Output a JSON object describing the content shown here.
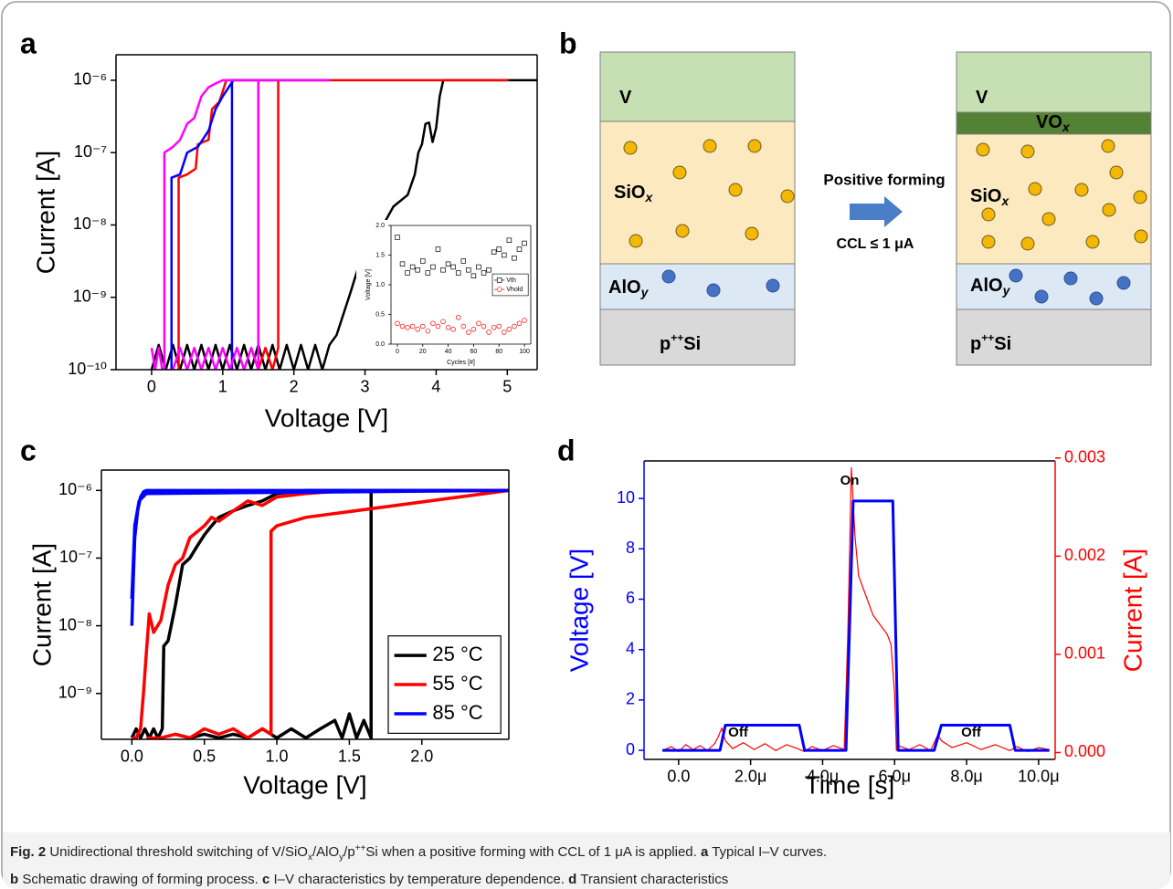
{
  "panel_labels": [
    "a",
    "b",
    "c",
    "d"
  ],
  "chart_data": [
    {
      "type": "line",
      "log_y": true,
      "xlabel": "Voltage [V]",
      "ylabel": "Current [A]",
      "xlim": [
        -0.5,
        5.42
      ],
      "xticks": [
        0,
        1,
        2,
        3,
        4,
        5
      ],
      "ylim": [
        1e-10,
        2.25e-06
      ],
      "yticks": [
        {
          "value": 1e-10,
          "label": "10⁻¹⁰"
        },
        {
          "value": 1e-09,
          "label": "10⁻⁹"
        },
        {
          "value": 1e-08,
          "label": "10⁻⁸"
        },
        {
          "value": 1e-07,
          "label": "10⁻⁷"
        },
        {
          "value": 1e-06,
          "label": "10⁻⁶"
        }
      ],
      "series": [
        {
          "color": "#000000",
          "x": [
            0,
            0.1,
            0.2,
            0.3,
            0.4,
            0.5,
            0.6,
            0.7,
            0.8,
            0.9,
            1.0,
            1.1,
            1.2,
            1.3,
            1.4,
            1.5,
            1.6,
            1.7,
            1.8,
            1.9,
            2.0,
            2.1,
            2.2,
            2.3,
            2.4,
            2.5,
            2.6,
            2.7,
            2.8,
            2.9,
            3.0,
            3.2,
            3.4,
            3.6,
            3.7,
            3.75,
            3.8,
            3.85,
            3.9,
            3.95,
            4.0,
            4.05,
            4.1,
            5.42
          ],
          "values": [
            1e-10,
            2.2e-10,
            1e-10,
            2.2e-10,
            1e-10,
            2.2e-10,
            1e-10,
            2.2e-10,
            1e-10,
            2.2e-10,
            1e-10,
            2.2e-10,
            1e-10,
            2.2e-10,
            1e-10,
            2.2e-10,
            1e-10,
            2.2e-10,
            1e-10,
            2.2e-10,
            1e-10,
            2.2e-10,
            1e-10,
            2.2e-10,
            1e-10,
            2.2e-10,
            3e-10,
            6e-10,
            1.2e-09,
            2.5e-09,
            4e-09,
            8e-09,
            1.8e-08,
            2.6e-08,
            5e-08,
            1e-07,
            1.3e-07,
            2.5e-07,
            2.6e-07,
            1.4e-07,
            2.2e-07,
            6e-07,
            1e-06,
            1e-06
          ]
        },
        {
          "color": "#ff0000",
          "x": [
            0.38,
            0.38,
            0.5,
            0.62,
            0.65,
            0.8,
            0.85,
            0.95,
            1.0,
            1.05,
            5.0,
            1.78,
            1.78,
            1.7,
            1.6,
            1.5,
            1.4
          ],
          "values": [
            1e-10,
            4.5e-08,
            5e-08,
            6e-08,
            1.3e-07,
            1.5e-07,
            4e-07,
            5e-07,
            7e-07,
            1e-06,
            1e-06,
            1e-06,
            2e-10,
            1e-10,
            2e-10,
            1e-10,
            2e-10
          ]
        },
        {
          "color": "#0000ff",
          "x": [
            0.28,
            0.28,
            0.4,
            0.5,
            0.65,
            0.8,
            0.9,
            1.0,
            1.15,
            2.5,
            1.13,
            1.13
          ],
          "values": [
            1e-10,
            4.5e-08,
            5e-08,
            1e-07,
            1.2e-07,
            2e-07,
            4e-07,
            6e-07,
            1e-06,
            1e-06,
            1e-06,
            1e-10
          ]
        },
        {
          "color": "#ff00ff",
          "x": [
            0,
            0.05,
            0.1,
            0.15,
            0.18,
            0.18,
            0.3,
            0.4,
            0.5,
            0.6,
            0.7,
            0.8,
            0.9,
            1.0,
            2.5,
            1.5,
            1.5,
            1.4,
            1.3,
            1.2,
            1.1,
            1.0,
            0.9,
            0.8,
            0.7,
            0.6,
            0.5,
            0.4,
            0.3
          ],
          "values": [
            2e-10,
            1e-10,
            2e-10,
            1e-10,
            1e-10,
            1e-07,
            1.2e-07,
            1.5e-07,
            2.5e-07,
            3e-07,
            6e-07,
            8e-07,
            9e-07,
            1e-06,
            1e-06,
            1e-06,
            1e-10,
            2e-10,
            1e-10,
            2e-10,
            1e-10,
            2e-10,
            1e-10,
            2e-10,
            1e-10,
            2e-10,
            1e-10,
            2e-10,
            1e-10
          ]
        }
      ]
    },
    {
      "type": "scatter",
      "xlabel": "Cycles [#]",
      "ylabel": "Voltage [V]",
      "legend": "center right",
      "xlim": [
        -5,
        105
      ],
      "xticks": [
        0,
        20,
        40,
        60,
        80,
        100
      ],
      "ylim": [
        0,
        2
      ],
      "yticks": [
        {
          "value": 0,
          "label": "0.0"
        },
        {
          "value": 0.5,
          "label": "0.5"
        },
        {
          "value": 1,
          "label": "1.0"
        },
        {
          "value": 1.5,
          "label": "1.5"
        },
        {
          "value": 2,
          "label": "2.0"
        }
      ],
      "series": [
        {
          "name": "Vth",
          "color": "#000000",
          "marker": "square",
          "x": [
            0,
            4,
            8,
            12,
            16,
            20,
            24,
            28,
            32,
            36,
            40,
            44,
            48,
            52,
            56,
            60,
            64,
            68,
            72,
            76,
            80,
            84,
            88,
            92,
            96,
            100
          ],
          "values": [
            1.8,
            1.35,
            1.2,
            1.3,
            1.25,
            1.4,
            1.2,
            1.3,
            1.6,
            1.25,
            1.35,
            1.3,
            1.2,
            1.4,
            1.25,
            1.15,
            1.3,
            1.2,
            1.25,
            1.55,
            1.6,
            1.5,
            1.75,
            1.45,
            1.6,
            1.7
          ]
        },
        {
          "name": "Vhold",
          "color": "#ff0000",
          "marker": "circle",
          "x": [
            0,
            4,
            8,
            12,
            16,
            20,
            24,
            28,
            32,
            36,
            40,
            44,
            48,
            52,
            56,
            60,
            64,
            68,
            72,
            76,
            80,
            84,
            88,
            92,
            96,
            100
          ],
          "values": [
            0.35,
            0.3,
            0.28,
            0.3,
            0.25,
            0.3,
            0.22,
            0.35,
            0.3,
            0.38,
            0.28,
            0.25,
            0.45,
            0.3,
            0.2,
            0.25,
            0.35,
            0.3,
            0.2,
            0.28,
            0.3,
            0.2,
            0.25,
            0.3,
            0.35,
            0.4
          ]
        }
      ]
    },
    {
      "type": "line",
      "log_y": true,
      "xlabel": "Voltage [V]",
      "ylabel": "Current [A]",
      "legend": "lower right",
      "xlim": [
        -0.21,
        2.6
      ],
      "xticks": [
        {
          "value": 0,
          "label": "0.0"
        },
        {
          "value": 0.5,
          "label": "0.5"
        },
        {
          "value": 1,
          "label": "1.0"
        },
        {
          "value": 1.5,
          "label": "1.5"
        },
        {
          "value": 2,
          "label": "2.0"
        }
      ],
      "ylim": [
        2.1e-10,
        2e-06
      ],
      "yticks": [
        {
          "value": 1e-09,
          "label": "10⁻⁹"
        },
        {
          "value": 1e-08,
          "label": "10⁻⁸"
        },
        {
          "value": 1e-07,
          "label": "10⁻⁷"
        },
        {
          "value": 1e-06,
          "label": "10⁻⁶"
        }
      ],
      "series": [
        {
          "name": "25 °C",
          "color": "#000000",
          "x": [
            0,
            0.03,
            0.06,
            0.09,
            0.12,
            0.15,
            0.18,
            0.21,
            0.22,
            0.25,
            0.3,
            0.35,
            0.4,
            0.45,
            0.5,
            0.55,
            0.6,
            0.7,
            0.8,
            0.9,
            1.0,
            1.2,
            1.5,
            2.6,
            1.65,
            1.65,
            1.6,
            1.55,
            1.5,
            1.45,
            1.4,
            1.3,
            1.2,
            1.1,
            1.0,
            0.9,
            0.8,
            0.7,
            0.6,
            0.5,
            0.4,
            0.3
          ],
          "values": [
            2.2e-10,
            3e-10,
            2.2e-10,
            3e-10,
            2.2e-10,
            3e-10,
            2.2e-10,
            3e-10,
            5e-09,
            6e-09,
            2e-08,
            8e-08,
            1e-07,
            1.5e-07,
            2.2e-07,
            3e-07,
            4e-07,
            5e-07,
            6e-07,
            7e-07,
            9e-07,
            1e-06,
            1e-06,
            1e-06,
            1e-06,
            2.2e-10,
            4e-10,
            2.2e-10,
            5e-10,
            2.2e-10,
            4e-10,
            3e-10,
            2.2e-10,
            3e-10,
            2.2e-10,
            3e-10,
            2.2e-10,
            2.5e-10,
            2.2e-10,
            2.5e-10,
            2.2e-10,
            2.5e-10
          ]
        },
        {
          "name": "55 °C",
          "color": "#ff0000",
          "x": [
            0,
            0.03,
            0.06,
            0.08,
            0.1,
            0.12,
            0.15,
            0.2,
            0.25,
            0.3,
            0.35,
            0.4,
            0.5,
            0.55,
            0.6,
            0.7,
            0.8,
            0.9,
            1.0,
            1.2,
            1.5,
            2.6,
            1.2,
            1.0,
            0.96,
            0.96,
            0.9,
            0.8,
            0.7,
            0.6,
            0.5,
            0.4,
            0.3,
            0.2,
            0.1
          ],
          "values": [
            2.2e-10,
            2.2e-10,
            3e-10,
            1e-09,
            4e-09,
            1.5e-08,
            8e-09,
            1.2e-08,
            4e-08,
            8e-08,
            1e-07,
            2e-07,
            3e-07,
            4e-07,
            3.5e-07,
            5e-07,
            7e-07,
            6e-07,
            8e-07,
            9e-07,
            1e-06,
            1e-06,
            4e-07,
            3e-07,
            2.5e-07,
            2.5e-10,
            3e-10,
            2.2e-10,
            3e-10,
            2.5e-10,
            3e-10,
            2.2e-10,
            2.5e-10,
            2.2e-10,
            2.2e-10
          ]
        },
        {
          "name": "85 °C",
          "color": "#0000ff",
          "x": [
            0,
            0.01,
            0.02,
            0.04,
            0.06,
            0.08,
            0.1,
            0.15,
            2.6,
            0.1,
            0.05,
            0.02,
            0
          ],
          "values": [
            1e-08,
            5e-08,
            2e-07,
            5e-07,
            8e-07,
            9.5e-07,
            1e-06,
            1e-06,
            1e-06,
            9e-07,
            7e-07,
            3e-07,
            2.5e-08
          ]
        }
      ]
    },
    {
      "type": "line",
      "xlabel": "Time [s]",
      "ylabel": "Voltage [V]",
      "y2label": "Current [A]",
      "ycolor": "#0000ff",
      "y2color": "#ff0000",
      "xlim": [
        -9.6e-07,
        1.046e-05
      ],
      "xticks": [
        {
          "value": 0,
          "label": "0.0"
        },
        {
          "value": 2e-06,
          "label": "2.0μ"
        },
        {
          "value": 4e-06,
          "label": "4.0μ"
        },
        {
          "value": 6e-06,
          "label": "6.0μ"
        },
        {
          "value": 8e-06,
          "label": "8.0μ"
        },
        {
          "value": 1e-05,
          "label": "10.0μ"
        }
      ],
      "ylim": [
        -0.36,
        11.49
      ],
      "yticks": [
        0,
        2,
        4,
        6,
        8,
        10
      ],
      "y2lim": [
        -7e-05,
        0.00297
      ],
      "y2ticks": [
        {
          "value": 0,
          "label": "0.000"
        },
        {
          "value": 0.001,
          "label": "0.001"
        },
        {
          "value": 0.002,
          "label": "0.002"
        },
        {
          "value": 0.003,
          "label": "0.003"
        }
      ],
      "annotations": [
        "Off",
        "On",
        "Off"
      ],
      "series": [
        {
          "color": "#ff0000",
          "axis": "y2",
          "x": [
            -4.5e-07,
            -2e-07,
            0,
            2e-07,
            4e-07,
            6e-07,
            8e-07,
            1e-06,
            1.1e-06,
            1.2e-06,
            1.3e-06,
            1.5e-06,
            1.8e-06,
            2.1e-06,
            2.4e-06,
            2.7e-06,
            3e-06,
            3.3e-06,
            3.5e-06,
            3.7e-06,
            4e-06,
            4.3e-06,
            4.6e-06,
            4.7e-06,
            4.8e-06,
            4.9e-06,
            5e-06,
            5.2e-06,
            5.4e-06,
            5.6e-06,
            5.8e-06,
            5.9e-06,
            6e-06,
            6.05e-06,
            6.1e-06,
            6.4e-06,
            6.7e-06,
            7e-06,
            7.2e-06,
            7.3e-06,
            7.6e-06,
            8e-06,
            8.4e-06,
            8.8e-06,
            9.2e-06,
            9.4e-06,
            9.7e-06,
            1e-05,
            1.03e-05
          ],
          "values": [
            2e-05,
            6e-05,
            1e-05,
            8e-05,
            3e-05,
            7e-05,
            2e-05,
            9e-05,
            0.00016,
            0.00025,
            0.00012,
            4e-05,
            0.0001,
            3e-05,
            9e-05,
            2e-05,
            8e-05,
            4e-05,
            1e-05,
            6e-05,
            2e-05,
            7e-05,
            3e-05,
            0.0012,
            0.0029,
            0.0022,
            0.0018,
            0.0016,
            0.0014,
            0.0013,
            0.0012,
            0.0011,
            0.0006,
            2e-05,
            7e-05,
            3e-05,
            8e-05,
            2e-05,
            0.00018,
            0.00012,
            5e-05,
            0.0001,
            3e-05,
            8e-05,
            2e-05,
            6e-05,
            1e-05,
            5e-05,
            3e-05
          ]
        },
        {
          "color": "#0000ff",
          "x": [
            -4.5e-07,
            1.15e-06,
            1.3e-06,
            3.35e-06,
            3.5e-06,
            4.65e-06,
            4.85e-06,
            5.95e-06,
            6.1e-06,
            7.1e-06,
            7.3e-06,
            9.2e-06,
            9.35e-06,
            1.03e-05
          ],
          "values": [
            0,
            0,
            1,
            1,
            0,
            0,
            9.9,
            9.9,
            0,
            0,
            1,
            1,
            0,
            0
          ]
        }
      ]
    }
  ],
  "diagram": {
    "left": [
      [
        "V"
      ],
      [
        "SiO",
        "x"
      ],
      [
        "AlO",
        "y"
      ],
      [
        "p",
        "++",
        "Si"
      ]
    ],
    "right": [
      [
        "V"
      ],
      [
        "VO",
        "x"
      ],
      [
        "SiO",
        "x"
      ],
      [
        "AlO",
        "y"
      ],
      [
        "p",
        "++",
        "Si"
      ]
    ],
    "arrow_top": "Positive forming",
    "arrow_bottom": "CCL ≤ 1 μA"
  },
  "caption": [
    "Fig. 2",
    " Unidirectional threshold switching of V/SiO",
    "x",
    "/AlO",
    "y",
    "/p",
    "++",
    "Si when a positive forming with CCL of 1 μA is applied. ",
    "a",
    " Typical I–V curves.",
    "b",
    " Schematic drawing of forming process. ",
    "c",
    " I–V characteristics by temperature dependence. ",
    "d",
    " Transient characteristics"
  ]
}
